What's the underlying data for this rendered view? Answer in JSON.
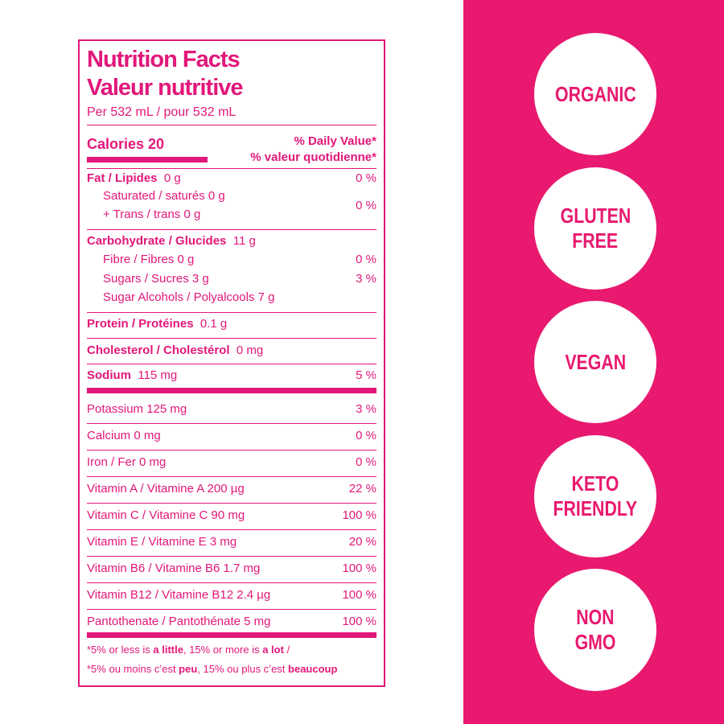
{
  "label": {
    "title_en": "Nutrition Facts",
    "title_fr": "Valeur nutritive",
    "serving": "Per 532 mL / pour 532 mL",
    "calories": "Calories 20",
    "daily_value_en": "% Daily Value*",
    "daily_value_fr": "% valeur quotidienne*",
    "fat": {
      "name": "Fat / Lipides",
      "amount": "0 g",
      "dv": "0 %"
    },
    "saturated": "Saturated / saturés 0 g",
    "trans": "+ Trans / trans 0 g",
    "saturated_trans_dv": "0 %",
    "carbohydrate": {
      "name": "Carbohydrate / Glucides",
      "amount": "11 g"
    },
    "fibre": {
      "text": "Fibre / Fibres 0 g",
      "dv": "0 %"
    },
    "sugars": {
      "text": "Sugars / Sucres 3 g",
      "dv": "3 %"
    },
    "sugar_alcohols": "Sugar Alcohols / Polyalcools 7 g",
    "protein": {
      "name": "Protein / Protéines",
      "amount": "0.1 g"
    },
    "cholesterol": {
      "name": "Cholesterol / Cholestérol",
      "amount": "0 mg"
    },
    "sodium": {
      "name": "Sodium",
      "amount": "115 mg",
      "dv": "5 %"
    },
    "micronutrients": [
      {
        "text": "Potassium 125 mg",
        "dv": "3 %"
      },
      {
        "text": "Calcium 0 mg",
        "dv": "0 %"
      },
      {
        "text": "Iron / Fer 0 mg",
        "dv": "0 %"
      },
      {
        "text": "Vitamin A / Vitamine A 200 µg",
        "dv": "22 %"
      },
      {
        "text": "Vitamin C / Vitamine C 90 mg",
        "dv": "100 %"
      },
      {
        "text": "Vitamin E / Vitamine E 3 mg",
        "dv": "20 %"
      },
      {
        "text": "Vitamin B6 / Vitamine B6 1.7 mg",
        "dv": "100 %"
      },
      {
        "text": "Vitamin B12 / Vitamine B12 2.4 µg",
        "dv": "100 %"
      },
      {
        "text": "Pantothenate / Pantothénate 5 mg",
        "dv": "100 %"
      }
    ],
    "footnote_en": [
      "*5% or less is ",
      "a little",
      ", 15% or more is ",
      "a lot",
      " /"
    ],
    "footnote_fr": [
      "*5% ou moins c’est ",
      "peu",
      ", 15% ou plus c’est ",
      "beaucoup"
    ]
  },
  "badges": [
    [
      "ORGANIC"
    ],
    [
      "GLUTEN",
      "FREE"
    ],
    [
      "VEGAN"
    ],
    [
      "KETO",
      "FRIENDLY"
    ],
    [
      "NON",
      "GMO"
    ]
  ]
}
